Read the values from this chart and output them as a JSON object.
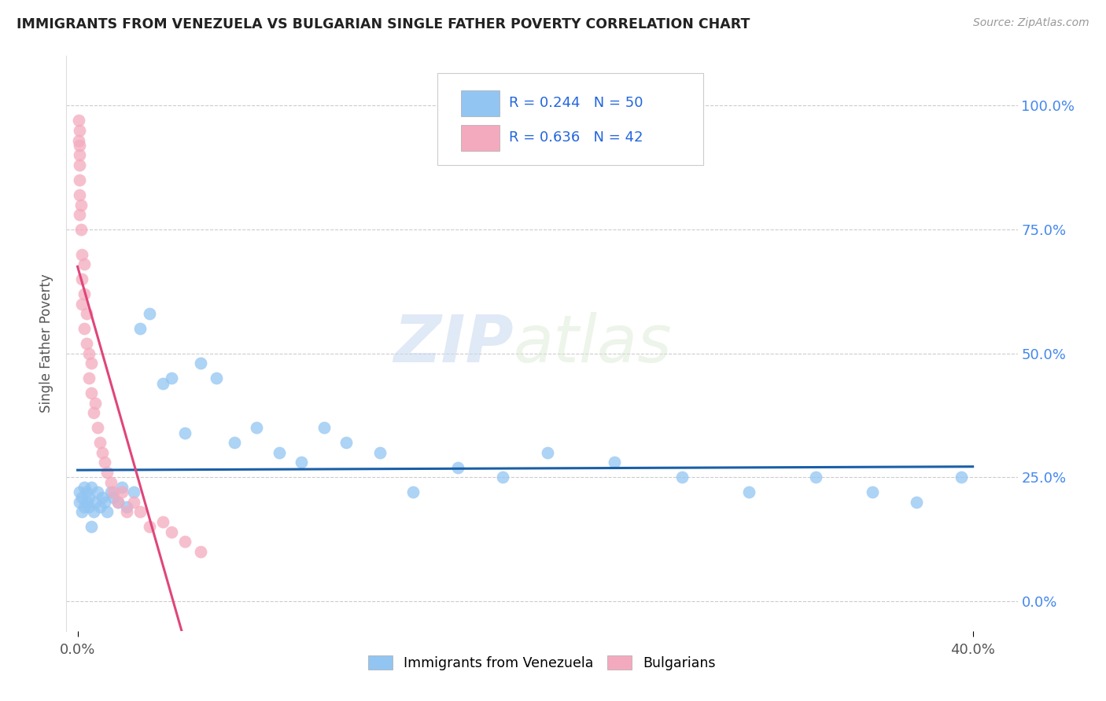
{
  "title": "IMMIGRANTS FROM VENEZUELA VS BULGARIAN SINGLE FATHER POVERTY CORRELATION CHART",
  "source": "Source: ZipAtlas.com",
  "ylabel": "Single Father Poverty",
  "legend_blue_label": "Immigrants from Venezuela",
  "legend_pink_label": "Bulgarians",
  "legend_R_blue": "R = 0.244",
  "legend_N_blue": "N = 50",
  "legend_R_pink": "R = 0.636",
  "legend_N_pink": "N = 42",
  "blue_color": "#92C5F2",
  "pink_color": "#F4AABE",
  "trend_blue": "#1A5FA8",
  "trend_pink": "#E0457B",
  "watermark_zip": "ZIP",
  "watermark_atlas": "atlas",
  "background_color": "#FFFFFF",
  "grid_color": "#CCCCCC",
  "blue_scatter_x": [
    0.001,
    0.001,
    0.002,
    0.002,
    0.003,
    0.003,
    0.004,
    0.004,
    0.005,
    0.005,
    0.006,
    0.006,
    0.007,
    0.008,
    0.009,
    0.01,
    0.011,
    0.012,
    0.013,
    0.015,
    0.016,
    0.018,
    0.02,
    0.022,
    0.025,
    0.028,
    0.032,
    0.038,
    0.042,
    0.048,
    0.055,
    0.062,
    0.07,
    0.08,
    0.09,
    0.1,
    0.11,
    0.12,
    0.135,
    0.15,
    0.17,
    0.19,
    0.21,
    0.24,
    0.27,
    0.3,
    0.33,
    0.355,
    0.375,
    0.395
  ],
  "blue_scatter_y": [
    0.2,
    0.22,
    0.18,
    0.21,
    0.19,
    0.23,
    0.2,
    0.22,
    0.19,
    0.21,
    0.15,
    0.23,
    0.18,
    0.2,
    0.22,
    0.19,
    0.21,
    0.2,
    0.18,
    0.22,
    0.21,
    0.2,
    0.23,
    0.19,
    0.22,
    0.55,
    0.58,
    0.44,
    0.45,
    0.34,
    0.48,
    0.45,
    0.32,
    0.35,
    0.3,
    0.28,
    0.35,
    0.32,
    0.3,
    0.22,
    0.27,
    0.25,
    0.3,
    0.28,
    0.25,
    0.22,
    0.25,
    0.22,
    0.2,
    0.25
  ],
  "pink_scatter_x": [
    0.0005,
    0.0005,
    0.0008,
    0.0008,
    0.001,
    0.001,
    0.001,
    0.001,
    0.001,
    0.0015,
    0.0015,
    0.002,
    0.002,
    0.002,
    0.003,
    0.003,
    0.003,
    0.004,
    0.004,
    0.005,
    0.005,
    0.006,
    0.006,
    0.007,
    0.008,
    0.009,
    0.01,
    0.011,
    0.012,
    0.013,
    0.015,
    0.016,
    0.018,
    0.02,
    0.022,
    0.025,
    0.028,
    0.032,
    0.038,
    0.042,
    0.048,
    0.055
  ],
  "pink_scatter_y": [
    0.97,
    0.93,
    0.95,
    0.9,
    0.92,
    0.88,
    0.85,
    0.82,
    0.78,
    0.8,
    0.75,
    0.7,
    0.65,
    0.6,
    0.68,
    0.62,
    0.55,
    0.58,
    0.52,
    0.5,
    0.45,
    0.48,
    0.42,
    0.38,
    0.4,
    0.35,
    0.32,
    0.3,
    0.28,
    0.26,
    0.24,
    0.22,
    0.2,
    0.22,
    0.18,
    0.2,
    0.18,
    0.15,
    0.16,
    0.14,
    0.12,
    0.1
  ],
  "xlim": [
    -0.005,
    0.42
  ],
  "ylim": [
    -0.06,
    1.1
  ],
  "ytick_vals": [
    0.0,
    0.25,
    0.5,
    0.75,
    1.0
  ],
  "ytick_labels": [
    "0.0%",
    "25.0%",
    "50.0%",
    "75.0%",
    "100.0%"
  ]
}
